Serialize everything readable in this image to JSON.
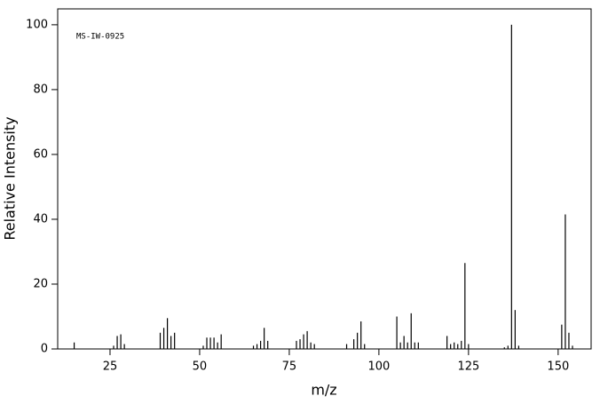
{
  "chart_data": {
    "type": "bar",
    "annotation": "MS-IW-0925",
    "xlabel": "m/z",
    "ylabel": "Relative Intensity",
    "color": "#000000",
    "xlim": [
      10.4,
      159.2
    ],
    "ylim": [
      0,
      104.9
    ],
    "xticks": [
      25,
      50,
      75,
      100,
      125,
      150
    ],
    "yticks": [
      0,
      20,
      40,
      60,
      80,
      100
    ],
    "x": [
      15,
      26,
      27,
      28,
      29,
      39,
      40,
      41,
      42,
      43,
      51,
      52,
      53,
      54,
      55,
      56,
      65,
      66,
      67,
      68,
      69,
      77,
      78,
      79,
      80,
      81,
      82,
      91,
      93,
      94,
      95,
      96,
      105,
      106,
      107,
      108,
      109,
      110,
      111,
      119,
      120,
      121,
      122,
      123,
      124,
      125,
      135,
      136,
      137,
      138,
      139,
      151,
      152,
      153,
      154
    ],
    "values": [
      2,
      1,
      4,
      4.5,
      1.5,
      5,
      6.5,
      9.5,
      4,
      5,
      1,
      3.5,
      3.5,
      3.5,
      2,
      4.5,
      1,
      1.5,
      2.5,
      6.5,
      2.5,
      2.5,
      3,
      4.5,
      5.5,
      2,
      1.5,
      1.5,
      3,
      5,
      8.5,
      1.5,
      10,
      2,
      4,
      2,
      11,
      2,
      2,
      4,
      1.5,
      2,
      1.5,
      2.5,
      26.5,
      1.5,
      0.5,
      1,
      100,
      12,
      1,
      7.5,
      41.5,
      5,
      1
    ]
  }
}
